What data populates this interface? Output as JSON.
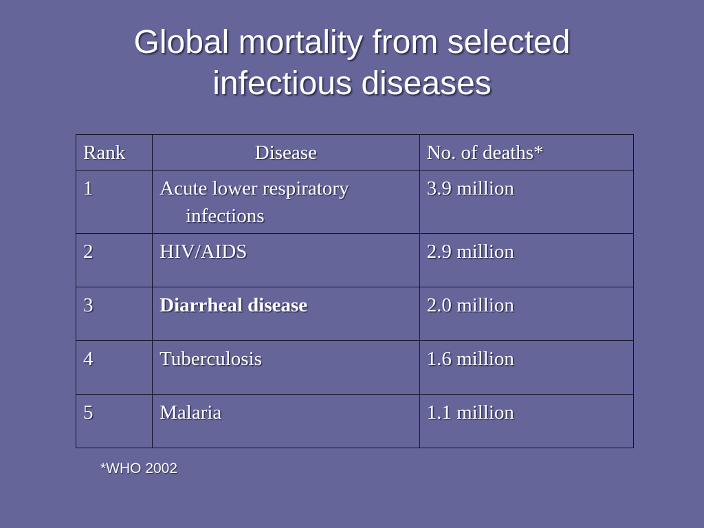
{
  "slide": {
    "title_line1": "Global mortality from selected",
    "title_line2": "infectious diseases",
    "footnote": "*WHO 2002"
  },
  "table": {
    "headers": [
      "Rank",
      "Disease",
      "No. of deaths*"
    ],
    "rows": [
      {
        "rank": "1",
        "disease": "Acute lower respiratory infections",
        "deaths": "3.9 million",
        "bold": false
      },
      {
        "rank": "2",
        "disease": "HIV/AIDS",
        "deaths": "2.9 million",
        "bold": false
      },
      {
        "rank": "3",
        "disease": "Diarrheal disease",
        "deaths": "2.0 million",
        "bold": true
      },
      {
        "rank": "4",
        "disease": "Tuberculosis",
        "deaths": "1.6 million",
        "bold": false
      },
      {
        "rank": "5",
        "disease": "Malaria",
        "deaths": "1.1 million",
        "bold": false
      }
    ]
  },
  "colors": {
    "background": "#65659a",
    "text": "#ffffff",
    "table_border": "#111122"
  }
}
